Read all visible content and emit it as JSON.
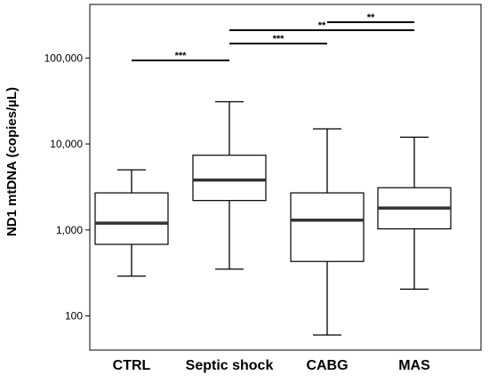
{
  "chart_data": {
    "type": "box",
    "ylabel": "ND1 mtDNA (copies/µL)",
    "y_scale": "log10",
    "ylim": [
      40,
      420000
    ],
    "y_ticks": [
      {
        "value": 100,
        "label": "100"
      },
      {
        "value": 1000,
        "label": "1,000"
      },
      {
        "value": 10000,
        "label": "10,000"
      },
      {
        "value": 100000,
        "label": "100,000"
      }
    ],
    "categories": [
      "CTRL",
      "Septic shock",
      "CABG",
      "MAS"
    ],
    "boxes": [
      {
        "min": 290,
        "q1": 680,
        "median": 1200,
        "q3": 2700,
        "max": 5000
      },
      {
        "min": 350,
        "q1": 2200,
        "median": 3800,
        "q3": 7400,
        "max": 31000
      },
      {
        "min": 60,
        "q1": 430,
        "median": 1300,
        "q3": 2700,
        "max": 15000
      },
      {
        "min": 205,
        "q1": 1030,
        "median": 1800,
        "q3": 3100,
        "max": 12000
      }
    ],
    "significance": [
      {
        "from": "CTRL",
        "to": "Septic shock",
        "label": "***"
      },
      {
        "from": "Septic shock",
        "to": "CABG",
        "label": "***"
      },
      {
        "from": "Septic shock",
        "to": "MAS",
        "label": "**"
      },
      {
        "from": "CABG",
        "to": "MAS",
        "label": "**"
      }
    ]
  }
}
